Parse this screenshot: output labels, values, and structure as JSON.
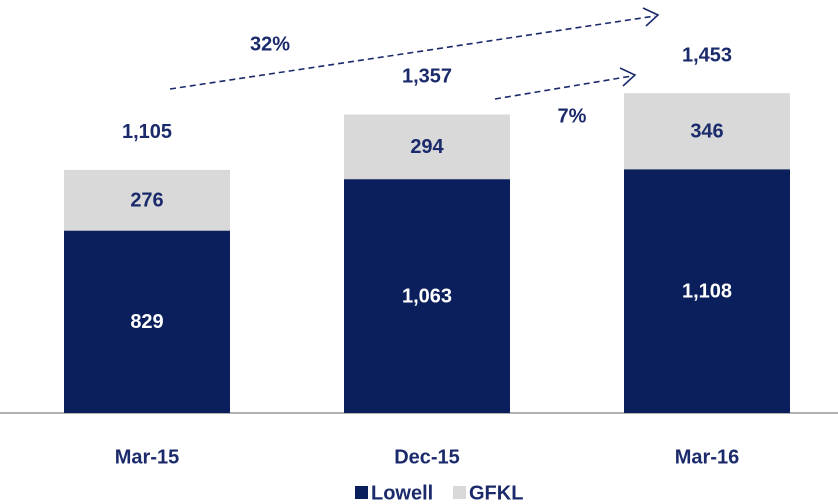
{
  "chart_data": {
    "type": "bar",
    "stacked": true,
    "categories": [
      "Mar-15",
      "Dec-15",
      "Mar-16"
    ],
    "series": [
      {
        "name": "Lowell",
        "color": "#0b1f5c",
        "label_color": "#ffffff",
        "values": [
          829,
          1063,
          1108
        ],
        "value_labels": [
          "829",
          "1,063",
          "1,108"
        ]
      },
      {
        "name": "GFKL",
        "color": "#d9d9d9",
        "label_color": "#1b2a6b",
        "values": [
          276,
          294,
          346
        ]
      }
    ],
    "totals": [
      1105,
      1357,
      1453
    ],
    "total_labels": [
      "1,105",
      "1,357",
      "1,453"
    ],
    "annotations": [
      "32%",
      "7%"
    ],
    "ylim": [
      0,
      1500
    ]
  }
}
